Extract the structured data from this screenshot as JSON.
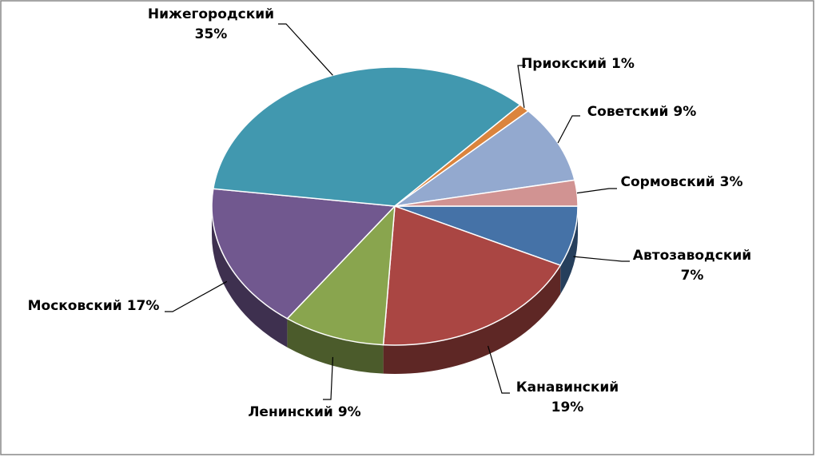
{
  "chart_data": {
    "type": "pie",
    "categories": [
      "Автозаводский",
      "Канавинский",
      "Ленинский",
      "Московский",
      "Нижегородский",
      "Приокский",
      "Советский",
      "Сормовский"
    ],
    "values": [
      7,
      19,
      9,
      17,
      35,
      1,
      9,
      3
    ],
    "value_labels": [
      "7%",
      "19%",
      "9%",
      "17%",
      "35%",
      "1%",
      "9%",
      "3%"
    ],
    "colors": [
      "#4572a7",
      "#aa4643",
      "#89a54e",
      "#71588f",
      "#4198af",
      "#db843d",
      "#93a9cf",
      "#d19392"
    ]
  }
}
